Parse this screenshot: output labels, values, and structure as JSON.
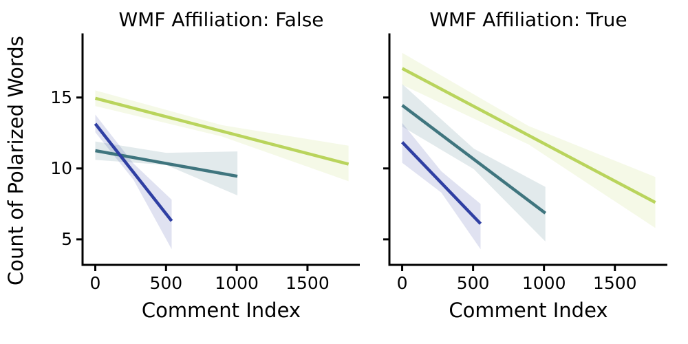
{
  "figure": {
    "background": "#ffffff",
    "text_color": "#000000",
    "spine_color": "#000000"
  },
  "chart_data": [
    {
      "type": "line",
      "subtype": "regression-lines-with-confidence-bands",
      "title": "WMF Affiliation: False",
      "xlabel": "Comment Index",
      "ylabel": "Count of Polarized Words",
      "xlim": [
        -90,
        1870
      ],
      "ylim": [
        3.2,
        19.45
      ],
      "xticks": [
        0,
        500,
        1000,
        1500
      ],
      "yticks": [
        5,
        10,
        15
      ],
      "show_ytick_labels": true,
      "grid": false,
      "legend": "none",
      "series": [
        {
          "name": "yellow-green",
          "color": "#b9d45c",
          "band_opacity": 0.15,
          "line": {
            "x": [
              0,
              1790
            ],
            "y": [
              14.95,
              10.3
            ]
          },
          "band": {
            "x": [
              0,
              895,
              1790
            ],
            "upper": [
              15.5,
              13.05,
              11.6
            ],
            "lower": [
              14.4,
              12.25,
              9.1
            ]
          }
        },
        {
          "name": "teal",
          "color": "#3f757e",
          "band_opacity": 0.15,
          "line": {
            "x": [
              0,
              1005
            ],
            "y": [
              11.25,
              9.45
            ]
          },
          "band": {
            "x": [
              0,
              500,
              1005
            ],
            "upper": [
              11.9,
              11.1,
              11.2
            ],
            "lower": [
              10.6,
              10.25,
              8.1
            ]
          }
        },
        {
          "name": "blue",
          "color": "#2f3fa3",
          "band_opacity": 0.15,
          "line": {
            "x": [
              0,
              540
            ],
            "y": [
              13.15,
              6.3
            ]
          },
          "band": {
            "x": [
              0,
              270,
              540
            ],
            "upper": [
              13.8,
              10.35,
              7.8
            ],
            "lower": [
              12.55,
              9.2,
              4.3
            ]
          }
        }
      ]
    },
    {
      "type": "line",
      "subtype": "regression-lines-with-confidence-bands",
      "title": "WMF Affiliation: True",
      "xlabel": "Comment Index",
      "ylabel": "",
      "xlim": [
        -90,
        1870
      ],
      "ylim": [
        3.2,
        19.45
      ],
      "xticks": [
        0,
        500,
        1000,
        1500
      ],
      "yticks": [
        5,
        10,
        15
      ],
      "show_ytick_labels": false,
      "grid": false,
      "legend": "none",
      "series": [
        {
          "name": "yellow-green",
          "color": "#b9d45c",
          "band_opacity": 0.15,
          "line": {
            "x": [
              0,
              1785
            ],
            "y": [
              17.05,
              7.6
            ]
          },
          "band": {
            "x": [
              0,
              890,
              1785
            ],
            "upper": [
              18.15,
              13.0,
              9.4
            ],
            "lower": [
              15.9,
              11.7,
              5.8
            ]
          }
        },
        {
          "name": "teal",
          "color": "#3f757e",
          "band_opacity": 0.15,
          "line": {
            "x": [
              0,
              1010
            ],
            "y": [
              14.45,
              6.85
            ]
          },
          "band": {
            "x": [
              0,
              505,
              1010
            ],
            "upper": [
              15.95,
              11.4,
              8.7
            ],
            "lower": [
              12.95,
              9.95,
              4.85
            ]
          }
        },
        {
          "name": "blue",
          "color": "#2f3fa3",
          "band_opacity": 0.15,
          "line": {
            "x": [
              0,
              553
            ],
            "y": [
              11.85,
              6.1
            ]
          },
          "band": {
            "x": [
              0,
              276,
              553
            ],
            "upper": [
              13.2,
              9.8,
              7.5
            ],
            "lower": [
              10.4,
              8.3,
              4.3
            ]
          }
        }
      ]
    }
  ]
}
